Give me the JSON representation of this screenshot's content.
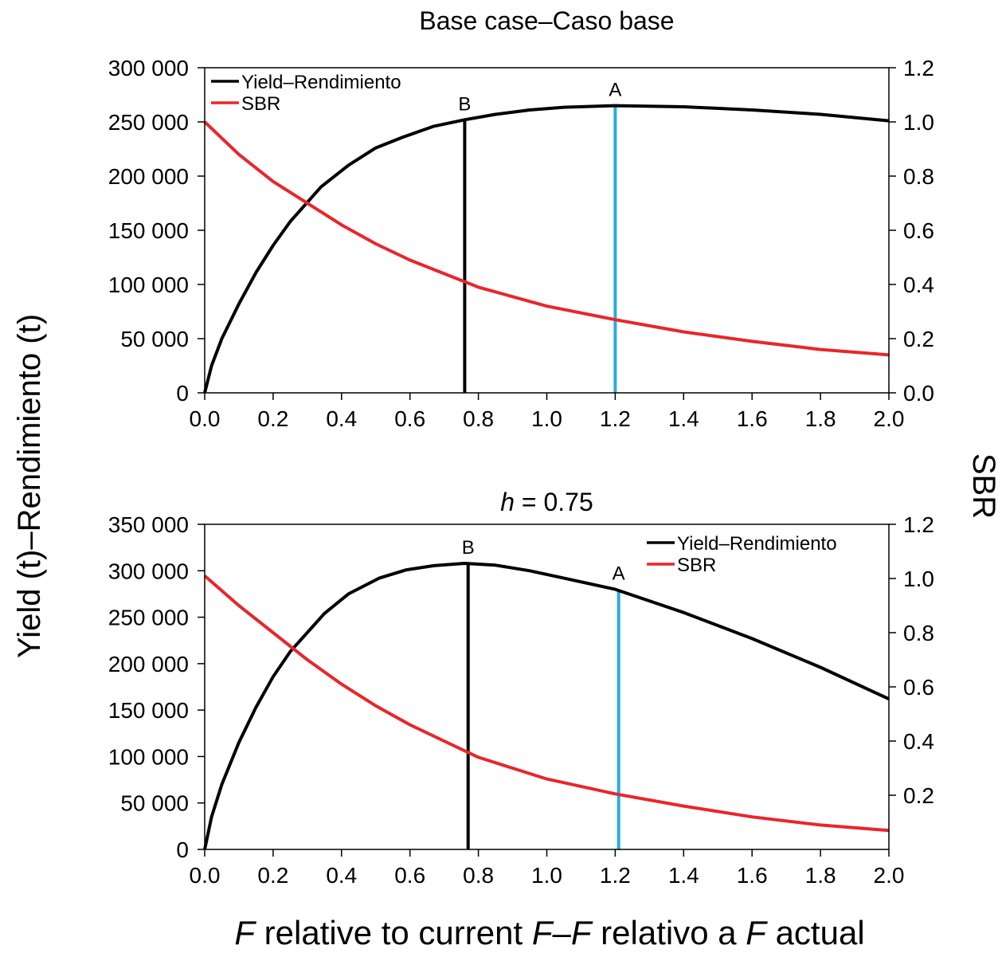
{
  "figure": {
    "ylabel_left": "Yield (t)–Rendimiento (t)",
    "ylabel_right": "SBR",
    "xlabel": {
      "parts": [
        {
          "text": "F",
          "italic": true
        },
        {
          "text": " relative to current ",
          "italic": false
        },
        {
          "text": "F",
          "italic": true
        },
        {
          "text": "–",
          "italic": false
        },
        {
          "text": "F",
          "italic": true
        },
        {
          "text": " relativo a ",
          "italic": false
        },
        {
          "text": "F",
          "italic": true
        },
        {
          "text": " actual",
          "italic": false
        }
      ]
    }
  },
  "colors": {
    "yield": "#000000",
    "sbr": "#e8262b",
    "line_A": "#29abe2",
    "line_B": "#000000"
  },
  "chart_data": [
    {
      "type": "line",
      "title_parts": [
        {
          "text": "Base case–Caso base",
          "italic": false
        }
      ],
      "xlim": [
        0,
        2.0
      ],
      "xticks": [
        0.0,
        0.2,
        0.4,
        0.6,
        0.8,
        1.0,
        1.2,
        1.4,
        1.6,
        1.8,
        2.0
      ],
      "xtick_labels": [
        "0.0",
        "0.2",
        "0.4",
        "0.6",
        "0.8",
        "1.0",
        "1.2",
        "1.4",
        "1.6",
        "1.8",
        "2.0"
      ],
      "ylim_left": [
        0,
        300000
      ],
      "yticks_left": [
        0,
        50000,
        100000,
        150000,
        200000,
        250000,
        300000
      ],
      "ytick_labels_left": [
        "0",
        "50 000",
        "100 000",
        "150 000",
        "200 000",
        "250 000",
        "300 000"
      ],
      "ylim_right": [
        0,
        1.2
      ],
      "yticks_right": [
        0.0,
        0.2,
        0.4,
        0.6,
        0.8,
        1.0,
        1.2
      ],
      "ytick_labels_right": [
        "0.0",
        "0.2",
        "0.4",
        "0.6",
        "0.8",
        "1.0",
        "1.2"
      ],
      "legend_placement": "top-left",
      "series": [
        {
          "name": "Yield–Rendimiento",
          "axis": "left",
          "x": [
            0,
            0.02,
            0.05,
            0.1,
            0.15,
            0.2,
            0.25,
            0.34,
            0.42,
            0.5,
            0.58,
            0.67,
            0.76,
            0.85,
            0.95,
            1.05,
            1.2,
            1.4,
            1.6,
            1.8,
            2.0
          ],
          "y": [
            0,
            25000,
            50000,
            82000,
            111000,
            136000,
            158000,
            190000,
            210000,
            226000,
            236000,
            246000,
            252000,
            257000,
            261000,
            263500,
            265000,
            264000,
            261000,
            257000,
            251000
          ]
        },
        {
          "name": "SBR",
          "axis": "right",
          "x": [
            0,
            0.1,
            0.2,
            0.3,
            0.4,
            0.5,
            0.6,
            0.7,
            0.8,
            0.9,
            1.0,
            1.2,
            1.4,
            1.6,
            1.8,
            2.0
          ],
          "y": [
            1.0,
            0.88,
            0.78,
            0.7,
            0.62,
            0.55,
            0.49,
            0.44,
            0.39,
            0.355,
            0.32,
            0.27,
            0.225,
            0.19,
            0.16,
            0.14
          ]
        }
      ],
      "vlines": [
        {
          "label": "B",
          "x": 0.76,
          "y_top": 252000,
          "color": "#000000"
        },
        {
          "label": "A",
          "x": 1.2,
          "y_top": 265000,
          "color": "#29abe2"
        }
      ]
    },
    {
      "type": "line",
      "title_parts": [
        {
          "text": "h",
          "italic": true
        },
        {
          "text": " = 0.75",
          "italic": false
        }
      ],
      "xlim": [
        0,
        2.0
      ],
      "xticks": [
        0.0,
        0.2,
        0.4,
        0.6,
        0.8,
        1.0,
        1.2,
        1.4,
        1.6,
        1.8,
        2.0
      ],
      "xtick_labels": [
        "0.0",
        "0.2",
        "0.4",
        "0.6",
        "0.8",
        "1.0",
        "1.2",
        "1.4",
        "1.6",
        "1.8",
        "2.0"
      ],
      "ylim_left": [
        0,
        350000
      ],
      "yticks_left": [
        0,
        50000,
        100000,
        150000,
        200000,
        250000,
        300000,
        350000
      ],
      "ytick_labels_left": [
        "0",
        "50 000",
        "100 000",
        "150 000",
        "200 000",
        "250 000",
        "300 000",
        "350 000"
      ],
      "ylim_right": [
        0,
        1.2
      ],
      "yticks_right": [
        0.2,
        0.4,
        0.6,
        0.8,
        1.0,
        1.2
      ],
      "ytick_labels_right": [
        "0.2",
        "0.4",
        "0.6",
        "0.8",
        "1.0",
        "1.2"
      ],
      "legend_placement": "top-right",
      "series": [
        {
          "name": "Yield–Rendimiento",
          "axis": "left",
          "x": [
            0,
            0.02,
            0.05,
            0.1,
            0.15,
            0.2,
            0.25,
            0.35,
            0.42,
            0.51,
            0.59,
            0.67,
            0.76,
            0.85,
            0.95,
            1.05,
            1.2,
            1.4,
            1.6,
            1.8,
            2.0
          ],
          "y": [
            0,
            35000,
            70000,
            115000,
            153000,
            186000,
            213000,
            254000,
            275000,
            292000,
            301000,
            305500,
            308000,
            306000,
            300000,
            292000,
            280000,
            255000,
            227000,
            196000,
            162000
          ]
        },
        {
          "name": "SBR",
          "axis": "right",
          "x": [
            0,
            0.1,
            0.2,
            0.3,
            0.4,
            0.5,
            0.6,
            0.7,
            0.8,
            0.9,
            1.0,
            1.2,
            1.4,
            1.6,
            1.8,
            2.0
          ],
          "y": [
            1.01,
            0.9,
            0.8,
            0.7,
            0.61,
            0.53,
            0.46,
            0.4,
            0.34,
            0.3,
            0.26,
            0.205,
            0.16,
            0.12,
            0.09,
            0.07
          ]
        }
      ],
      "vlines": [
        {
          "label": "B",
          "x": 0.77,
          "y_top": 308000,
          "color": "#000000"
        },
        {
          "label": "A",
          "x": 1.21,
          "y_top": 280000,
          "color": "#29abe2"
        }
      ]
    }
  ]
}
